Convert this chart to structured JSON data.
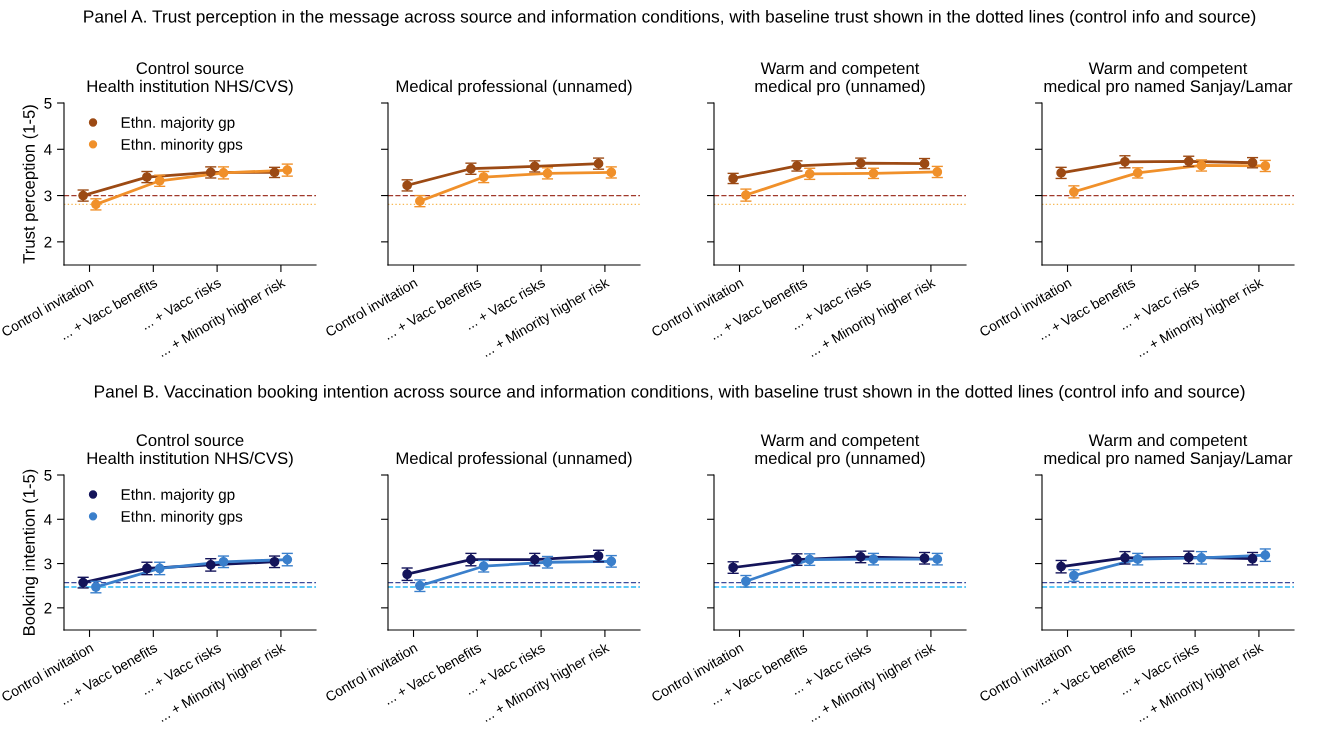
{
  "chart_data": [
    {
      "type": "line",
      "title": "Control source\nHealth institution NHS/CVS)",
      "ylabel": "Trust perception (1-5)",
      "annotations": [
        "Panel A. Trust perception in the message across source and information conditions, with baseline trust shown in the dotted lines (control info and source)"
      ],
      "categories": [
        "Control invitation",
        "... + Vacc benefits",
        "... + Vacc risks",
        "... + Minority higher risk"
      ],
      "ylim": [
        1.5,
        5
      ],
      "yticks": [
        2,
        3,
        4,
        5
      ],
      "marker": "circle",
      "legend": "top left",
      "series": [
        {
          "name": "Ethn. majority gp",
          "color": "#9c4a14",
          "values": [
            3.0,
            3.4,
            3.5,
            3.5
          ],
          "errors": [
            0.12,
            0.12,
            0.12,
            0.11
          ]
        },
        {
          "name": "Ethn. minority gps",
          "color": "#f0902a",
          "values": [
            2.81,
            3.32,
            3.49,
            3.55
          ],
          "errors": [
            0.12,
            0.12,
            0.13,
            0.13
          ]
        }
      ],
      "ref_lines": [
        {
          "axis": "y",
          "value": 3.0,
          "color": "#a0392b",
          "line_style": "dashed"
        },
        {
          "axis": "y",
          "value": 2.81,
          "color": "#f7b955",
          "line_style": "dotted"
        }
      ]
    },
    {
      "type": "line",
      "title": "Medical professional (unnamed)",
      "categories": [
        "Control invitation",
        "... + Vacc benefits",
        "... + Vacc risks",
        "... + Minority higher risk"
      ],
      "ylim": [
        1.5,
        5
      ],
      "yticks": [
        2,
        3,
        4,
        5
      ],
      "tick_labels": "x",
      "marker": "circle",
      "series": [
        {
          "color": "#9c4a14",
          "values": [
            3.22,
            3.58,
            3.63,
            3.69
          ],
          "errors": [
            0.12,
            0.12,
            0.12,
            0.12
          ]
        },
        {
          "color": "#f0902a",
          "values": [
            2.88,
            3.4,
            3.48,
            3.5
          ],
          "errors": [
            0.12,
            0.12,
            0.12,
            0.12
          ]
        }
      ],
      "ref_lines": [
        {
          "axis": "y",
          "value": 3.0,
          "color": "#a0392b",
          "line_style": "dashed"
        },
        {
          "axis": "y",
          "value": 2.81,
          "color": "#f7b955",
          "line_style": "dotted"
        }
      ]
    },
    {
      "type": "line",
      "title": "Warm and competent\nmedical pro (unnamed)",
      "categories": [
        "Control invitation",
        "... + Vacc benefits",
        "... + Vacc risks",
        "... + Minority higher risk"
      ],
      "ylim": [
        1.5,
        5
      ],
      "yticks": [
        2,
        3,
        4,
        5
      ],
      "tick_labels": "x",
      "marker": "circle",
      "series": [
        {
          "color": "#9c4a14",
          "values": [
            3.37,
            3.64,
            3.7,
            3.69
          ],
          "errors": [
            0.11,
            0.11,
            0.11,
            0.11
          ]
        },
        {
          "color": "#f0902a",
          "values": [
            3.01,
            3.47,
            3.48,
            3.51
          ],
          "errors": [
            0.13,
            0.12,
            0.11,
            0.12
          ]
        }
      ],
      "ref_lines": [
        {
          "axis": "y",
          "value": 3.0,
          "color": "#a0392b",
          "line_style": "dashed"
        },
        {
          "axis": "y",
          "value": 2.81,
          "color": "#f7b955",
          "line_style": "dotted"
        }
      ]
    },
    {
      "type": "line",
      "title": "Warm and competent\nmedical pro named Sanjay/Lamar",
      "categories": [
        "Control invitation",
        "... + Vacc benefits",
        "... + Vacc risks",
        "... + Minority higher risk"
      ],
      "ylim": [
        1.5,
        5
      ],
      "yticks": [
        2,
        3,
        4,
        5
      ],
      "tick_labels": "x",
      "marker": "circle",
      "series": [
        {
          "color": "#9c4a14",
          "values": [
            3.49,
            3.73,
            3.74,
            3.71
          ],
          "errors": [
            0.12,
            0.13,
            0.11,
            0.11
          ]
        },
        {
          "color": "#f0902a",
          "values": [
            3.08,
            3.49,
            3.65,
            3.64
          ],
          "errors": [
            0.13,
            0.11,
            0.12,
            0.12
          ]
        }
      ],
      "ref_lines": [
        {
          "axis": "y",
          "value": 3.0,
          "color": "#a0392b",
          "line_style": "dashed"
        },
        {
          "axis": "y",
          "value": 2.81,
          "color": "#f7b955",
          "line_style": "dotted"
        }
      ]
    },
    {
      "type": "line",
      "title": "Control source\nHealth institution NHS/CVS)",
      "ylabel": "Booking intention (1-5)",
      "annotations": [
        "Panel B. Vaccination booking intention across source and information conditions, with baseline trust shown in the dotted lines (control info and source)"
      ],
      "categories": [
        "Control invitation",
        "... + Vacc benefits",
        "... + Vacc risks",
        "... + Minority higher risk"
      ],
      "ylim": [
        1.5,
        5
      ],
      "yticks": [
        2,
        3,
        4,
        5
      ],
      "marker": "circle",
      "legend": "top left",
      "series": [
        {
          "name": "Ethn. majority gp",
          "color": "#14145a",
          "values": [
            2.57,
            2.89,
            2.97,
            3.04
          ],
          "errors": [
            0.12,
            0.14,
            0.14,
            0.13
          ]
        },
        {
          "name": "Ethn. minority gps",
          "color": "#3a7fcb",
          "values": [
            2.47,
            2.89,
            3.04,
            3.09
          ],
          "errors": [
            0.13,
            0.14,
            0.13,
            0.14
          ]
        }
      ],
      "ref_lines": [
        {
          "axis": "y",
          "value": 2.57,
          "color": "#3b4a9a",
          "line_style": "dashed"
        },
        {
          "axis": "y",
          "value": 2.47,
          "color": "#29b6f6",
          "line_style": "dashed"
        }
      ]
    },
    {
      "type": "line",
      "title": "Medical professional (unnamed)",
      "categories": [
        "Control invitation",
        "... + Vacc benefits",
        "... + Vacc risks",
        "... + Minority higher risk"
      ],
      "ylim": [
        1.5,
        5
      ],
      "yticks": [
        2,
        3,
        4,
        5
      ],
      "tick_labels": "x",
      "marker": "circle",
      "series": [
        {
          "color": "#14145a",
          "values": [
            2.76,
            3.09,
            3.09,
            3.17
          ],
          "errors": [
            0.14,
            0.14,
            0.14,
            0.13
          ]
        },
        {
          "color": "#3a7fcb",
          "values": [
            2.5,
            2.94,
            3.03,
            3.05
          ],
          "errors": [
            0.13,
            0.13,
            0.13,
            0.13
          ]
        }
      ],
      "ref_lines": [
        {
          "axis": "y",
          "value": 2.57,
          "color": "#3b4a9a",
          "line_style": "dashed"
        },
        {
          "axis": "y",
          "value": 2.47,
          "color": "#29b6f6",
          "line_style": "dashed"
        }
      ]
    },
    {
      "type": "line",
      "title": "Warm and competent\nmedical pro (unnamed)",
      "categories": [
        "Control invitation",
        "... + Vacc benefits",
        "... + Vacc risks",
        "... + Minority higher risk"
      ],
      "ylim": [
        1.5,
        5
      ],
      "yticks": [
        2,
        3,
        4,
        5
      ],
      "tick_labels": "x",
      "marker": "circle",
      "series": [
        {
          "color": "#14145a",
          "values": [
            2.91,
            3.09,
            3.15,
            3.12
          ],
          "errors": [
            0.13,
            0.13,
            0.13,
            0.13
          ]
        },
        {
          "color": "#3a7fcb",
          "values": [
            2.6,
            3.09,
            3.1,
            3.1
          ],
          "errors": [
            0.13,
            0.13,
            0.13,
            0.13
          ]
        }
      ],
      "ref_lines": [
        {
          "axis": "y",
          "value": 2.57,
          "color": "#3b4a9a",
          "line_style": "dashed"
        },
        {
          "axis": "y",
          "value": 2.47,
          "color": "#29b6f6",
          "line_style": "dashed"
        }
      ]
    },
    {
      "type": "line",
      "title": "Warm and competent\nmedical pro named Sanjay/Lamar",
      "categories": [
        "Control invitation",
        "... + Vacc benefits",
        "... + Vacc risks",
        "... + Minority higher risk"
      ],
      "ylim": [
        1.5,
        5
      ],
      "yticks": [
        2,
        3,
        4,
        5
      ],
      "tick_labels": "x",
      "marker": "circle",
      "series": [
        {
          "color": "#14145a",
          "values": [
            2.93,
            3.13,
            3.14,
            3.11
          ],
          "errors": [
            0.14,
            0.14,
            0.14,
            0.14
          ]
        },
        {
          "color": "#3a7fcb",
          "values": [
            2.73,
            3.1,
            3.13,
            3.19
          ],
          "errors": [
            0.13,
            0.13,
            0.14,
            0.14
          ]
        }
      ],
      "ref_lines": [
        {
          "axis": "y",
          "value": 2.57,
          "color": "#3b4a9a",
          "line_style": "dashed"
        },
        {
          "axis": "y",
          "value": 2.47,
          "color": "#29b6f6",
          "line_style": "dashed"
        }
      ]
    }
  ]
}
